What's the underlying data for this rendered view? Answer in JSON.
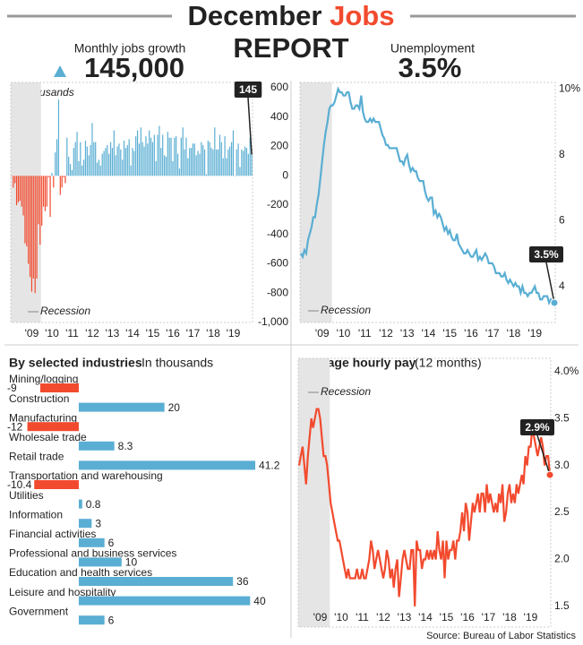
{
  "header": {
    "title_1": "December",
    "title_2": "Jobs",
    "title_3": "REPORT"
  },
  "chart_data": [
    {
      "type": "bar",
      "title": "Monthly jobs growth",
      "headline": "145,000",
      "subtitle": "In thousands",
      "callout": "145",
      "categories": [
        null,
        null,
        null,
        null,
        null,
        null,
        null,
        null,
        null,
        null,
        null,
        null,
        "'09",
        null,
        null,
        null,
        null,
        null,
        null,
        null,
        null,
        null,
        null,
        null,
        "'10",
        null,
        null,
        null,
        null,
        null,
        null,
        null,
        null,
        null,
        null,
        null,
        "'11",
        null,
        null,
        null,
        null,
        null,
        null,
        null,
        null,
        null,
        null,
        null,
        "'12",
        null,
        null,
        null,
        null,
        null,
        null,
        null,
        null,
        null,
        null,
        null,
        "'13",
        null,
        null,
        null,
        null,
        null,
        null,
        null,
        null,
        null,
        null,
        null,
        "'14",
        null,
        null,
        null,
        null,
        null,
        null,
        null,
        null,
        null,
        null,
        null,
        "'15",
        null,
        null,
        null,
        null,
        null,
        null,
        null,
        null,
        null,
        null,
        null,
        "'16",
        null,
        null,
        null,
        null,
        null,
        null,
        null,
        null,
        null,
        null,
        null,
        "'17",
        null,
        null,
        null,
        null,
        null,
        null,
        null,
        null,
        null,
        null,
        null,
        "'18",
        null,
        null,
        null,
        null,
        null,
        null,
        null,
        null,
        null,
        null,
        null,
        "'19",
        null,
        null,
        null,
        null,
        null,
        null,
        null,
        null,
        null,
        null,
        null
      ],
      "values": [
        -1,
        -80,
        -50,
        -200,
        -180,
        -170,
        -210,
        -270,
        -460,
        -480,
        -600,
        -690,
        -790,
        -700,
        -800,
        -700,
        -330,
        -470,
        -340,
        -210,
        -240,
        -210,
        -10,
        -280,
        20,
        -80,
        160,
        250,
        520,
        -130,
        -80,
        -10,
        -50,
        260,
        130,
        80,
        40,
        190,
        230,
        300,
        100,
        230,
        70,
        110,
        240,
        200,
        140,
        210,
        360,
        230,
        230,
        90,
        110,
        70,
        150,
        170,
        190,
        210,
        150,
        230,
        190,
        310,
        140,
        200,
        220,
        180,
        110,
        240,
        190,
        210,
        250,
        70,
        190,
        170,
        270,
        310,
        220,
        330,
        230,
        200,
        270,
        220,
        310,
        260,
        230,
        280,
        100,
        280,
        340,
        190,
        280,
        140,
        130,
        300,
        260,
        260,
        100,
        260,
        270,
        150,
        50,
        260,
        330,
        180,
        260,
        120,
        190,
        190,
        220,
        220,
        140,
        170,
        150,
        230,
        210,
        180,
        10,
        240,
        230,
        190,
        180,
        330,
        180,
        180,
        280,
        230,
        120,
        270,
        120,
        180,
        200,
        230,
        310,
        1,
        180,
        220,
        60,
        180,
        170,
        200,
        190,
        150,
        260,
        145
      ],
      "colors": {
        "positive": "#5aaed3",
        "negative": "#f24a2e"
      },
      "ylim": [
        -1000,
        637
      ],
      "yticks": [
        600,
        400,
        200,
        0,
        -200,
        -400,
        -600,
        -800,
        {
          "value": -1000,
          "label": "-1,000"
        }
      ],
      "recession": {
        "label": "Recession",
        "from": 0,
        "to": 17
      }
    },
    {
      "type": "line",
      "title": "Unemployment",
      "headline": "3.5%",
      "callout": "3.5%",
      "color": "#5aaed3",
      "categories": [
        null,
        null,
        null,
        null,
        null,
        null,
        null,
        null,
        null,
        null,
        null,
        null,
        "'09",
        null,
        null,
        null,
        null,
        null,
        null,
        null,
        null,
        null,
        null,
        null,
        "'10",
        null,
        null,
        null,
        null,
        null,
        null,
        null,
        null,
        null,
        null,
        null,
        "'11",
        null,
        null,
        null,
        null,
        null,
        null,
        null,
        null,
        null,
        null,
        null,
        "'12",
        null,
        null,
        null,
        null,
        null,
        null,
        null,
        null,
        null,
        null,
        null,
        "'13",
        null,
        null,
        null,
        null,
        null,
        null,
        null,
        null,
        null,
        null,
        null,
        "'14",
        null,
        null,
        null,
        null,
        null,
        null,
        null,
        null,
        null,
        null,
        null,
        "'15",
        null,
        null,
        null,
        null,
        null,
        null,
        null,
        null,
        null,
        null,
        null,
        "'16",
        null,
        null,
        null,
        null,
        null,
        null,
        null,
        null,
        null,
        null,
        null,
        "'17",
        null,
        null,
        null,
        null,
        null,
        null,
        null,
        null,
        null,
        null,
        null,
        "'18",
        null,
        null,
        null,
        null,
        null,
        null,
        null,
        null,
        null,
        null,
        null,
        "'19",
        null,
        null,
        null,
        null,
        null,
        null,
        null,
        null,
        null,
        null,
        null
      ],
      "values": [
        5.0,
        4.9,
        5.1,
        5.0,
        5.4,
        5.6,
        5.8,
        6.1,
        6.1,
        6.5,
        6.8,
        7.3,
        7.8,
        8.3,
        8.7,
        9.0,
        9.4,
        9.5,
        9.5,
        9.6,
        9.8,
        10.0,
        9.9,
        9.9,
        9.8,
        9.8,
        9.9,
        9.9,
        9.6,
        9.4,
        9.4,
        9.5,
        9.5,
        9.4,
        9.8,
        9.3,
        9.1,
        9.0,
        9.0,
        9.1,
        9.0,
        9.1,
        9.0,
        9.0,
        9.0,
        8.8,
        8.6,
        8.5,
        8.3,
        8.3,
        8.2,
        8.2,
        8.2,
        8.2,
        8.2,
        8.0,
        7.8,
        7.8,
        7.7,
        7.9,
        8.0,
        7.7,
        7.5,
        7.6,
        7.5,
        7.5,
        7.3,
        7.2,
        7.2,
        7.2,
        6.9,
        6.7,
        6.6,
        6.7,
        6.7,
        6.2,
        6.3,
        6.1,
        6.2,
        6.1,
        5.9,
        5.7,
        5.8,
        5.6,
        5.7,
        5.5,
        5.4,
        5.4,
        5.6,
        5.3,
        5.2,
        5.1,
        5.0,
        5.0,
        5.1,
        5.0,
        4.9,
        4.9,
        5.0,
        5.1,
        4.8,
        4.9,
        4.8,
        4.9,
        5.0,
        4.9,
        4.7,
        4.7,
        4.7,
        4.6,
        4.4,
        4.4,
        4.4,
        4.3,
        4.3,
        4.4,
        4.2,
        4.1,
        4.2,
        4.1,
        4.0,
        4.1,
        4.0,
        4.0,
        3.8,
        4.0,
        3.8,
        3.8,
        3.7,
        3.8,
        3.8,
        3.9,
        4.0,
        3.8,
        3.8,
        3.6,
        3.6,
        3.7,
        3.7,
        3.7,
        3.5,
        3.6,
        3.5,
        3.5
      ],
      "ylim": [
        2.9,
        10.2
      ],
      "yticks": [
        4,
        6,
        8,
        {
          "value": 10,
          "label": "10%"
        }
      ],
      "recession": {
        "label": "Recession",
        "from": 0,
        "to": 17
      }
    },
    {
      "type": "hbar",
      "title": "By selected industries",
      "subtitle": "In thousands",
      "categories": [
        "Mining/logging",
        "Construction",
        "Manufacturing",
        "Wholesale trade",
        "Retail trade",
        "Transportation and warehousing",
        "Utilities",
        "Information",
        "Financial activities",
        "Professional and business services",
        "Education and health services",
        "Leisure and hospitality",
        "Government"
      ],
      "values": [
        -9,
        20,
        -12,
        8.3,
        41.2,
        -10.4,
        0.8,
        3,
        6,
        10,
        36,
        40,
        6
      ],
      "colors": {
        "positive": "#5aaed3",
        "negative": "#f24a2e"
      },
      "xlim": [
        -16.3,
        50.6
      ]
    },
    {
      "type": "line",
      "title": "Average hourly pay",
      "subtitle": "(12 months)",
      "callout": "2.9%",
      "color": "#f24a2e",
      "categories": [
        null,
        null,
        null,
        null,
        null,
        null,
        null,
        null,
        null,
        null,
        null,
        null,
        "'09",
        null,
        null,
        null,
        null,
        null,
        null,
        null,
        null,
        null,
        null,
        null,
        "'10",
        null,
        null,
        null,
        null,
        null,
        null,
        null,
        null,
        null,
        null,
        null,
        "'11",
        null,
        null,
        null,
        null,
        null,
        null,
        null,
        null,
        null,
        null,
        null,
        "'12",
        null,
        null,
        null,
        null,
        null,
        null,
        null,
        null,
        null,
        null,
        null,
        "'13",
        null,
        null,
        null,
        null,
        null,
        null,
        null,
        null,
        null,
        null,
        null,
        "'14",
        null,
        null,
        null,
        null,
        null,
        null,
        null,
        null,
        null,
        null,
        null,
        "'15",
        null,
        null,
        null,
        null,
        null,
        null,
        null,
        null,
        null,
        null,
        null,
        "'16",
        null,
        null,
        null,
        null,
        null,
        null,
        null,
        null,
        null,
        null,
        null,
        "'17",
        null,
        null,
        null,
        null,
        null,
        null,
        null,
        null,
        null,
        null,
        null,
        "'18",
        null,
        null,
        null,
        null,
        null,
        null,
        null,
        null,
        null,
        null,
        null,
        "'19",
        null,
        null,
        null,
        null,
        null,
        null,
        null,
        null,
        null,
        null,
        null
      ],
      "values": [
        3.0,
        3.1,
        3.2,
        3.0,
        2.8,
        3.1,
        3.3,
        3.5,
        3.4,
        3.5,
        3.6,
        3.6,
        3.5,
        3.3,
        3.1,
        3.1,
        3.0,
        2.8,
        2.6,
        2.5,
        2.4,
        2.3,
        2.2,
        2.2,
        2.1,
        2.0,
        1.9,
        1.8,
        1.9,
        1.8,
        1.8,
        1.8,
        1.8,
        1.9,
        1.8,
        1.8,
        1.9,
        1.8,
        1.8,
        1.9,
        2.0,
        2.2,
        2.1,
        1.9,
        2.0,
        2.1,
        2.0,
        1.9,
        1.8,
        1.9,
        2.1,
        2.0,
        1.8,
        1.9,
        1.7,
        1.9,
        2.0,
        1.6,
        1.8,
        2.0,
        2.1,
        2.0,
        1.9,
        1.9,
        2.1,
        2.1,
        1.5,
        2.2,
        2.1,
        2.1,
        1.9,
        2.0,
        2.0,
        2.1,
        2.0,
        2.1,
        2.0,
        2.1,
        2.0,
        2.3,
        2.1,
        2.0,
        2.2,
        1.8,
        2.2,
        2.0,
        2.1,
        2.1,
        2.2,
        2.0,
        2.2,
        2.2,
        2.3,
        2.5,
        2.3,
        2.6,
        2.5,
        2.2,
        2.4,
        2.6,
        2.5,
        2.6,
        2.7,
        2.5,
        2.7,
        2.7,
        2.5,
        2.8,
        2.6,
        2.7,
        2.6,
        2.5,
        2.6,
        2.5,
        2.7,
        2.6,
        2.8,
        2.4,
        2.5,
        2.7,
        2.8,
        2.6,
        2.7,
        2.6,
        2.8,
        2.7,
        2.8,
        2.9,
        2.8,
        3.1,
        3.0,
        3.2,
        3.2,
        3.4,
        3.3,
        3.2,
        3.1,
        3.2,
        3.3,
        3.2,
        3.0,
        3.1,
        3.1,
        2.9
      ],
      "ylim": [
        1.28,
        4.14
      ],
      "yticks": [
        {
          "value": 4,
          "label": "4.0%"
        },
        3.5,
        {
          "value": 3,
          "label": "3.0"
        },
        2.5,
        {
          "value": 2,
          "label": "2.0"
        },
        1.5
      ],
      "recession": {
        "label": "Recession",
        "from": 0,
        "to": 17
      }
    }
  ],
  "source": "Source: Bureau of Labor Statistics"
}
